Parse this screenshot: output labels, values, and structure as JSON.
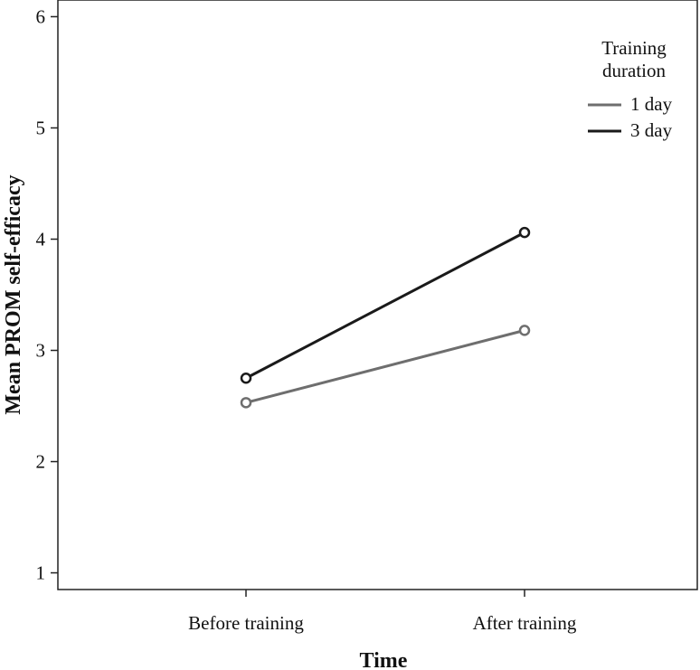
{
  "chart_data": {
    "type": "line",
    "title": "",
    "xlabel": "Time",
    "ylabel": "Mean PROM self-efficacy",
    "categories": [
      "Before training",
      "After training"
    ],
    "ylim": [
      0.85,
      6.15
    ],
    "yticks": [
      1,
      2,
      3,
      4,
      5,
      6
    ],
    "grid": false,
    "legend": {
      "title_line1": "Training",
      "title_line2": "duration",
      "placement": "top-right"
    },
    "series": [
      {
        "name": "1 day",
        "values": [
          2.53,
          3.18
        ],
        "color": "#6e6e6e"
      },
      {
        "name": "3 day",
        "values": [
          2.75,
          4.06
        ],
        "color": "#1a1a1a"
      }
    ]
  }
}
